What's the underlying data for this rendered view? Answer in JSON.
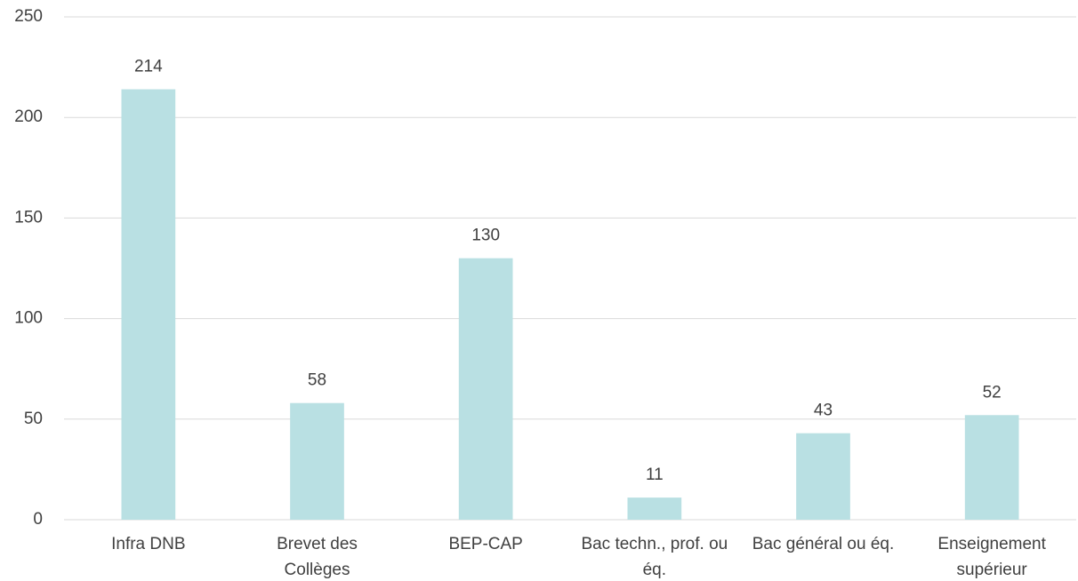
{
  "chart_data": {
    "type": "bar",
    "categories": [
      "Infra DNB",
      "Brevet des Collèges",
      "BEP-CAP",
      "Bac techn., prof. ou éq.",
      "Bac général ou éq.",
      "Enseignement supérieur"
    ],
    "values": [
      214,
      58,
      130,
      11,
      43,
      52
    ],
    "color": "#b9e0e3",
    "ylim": [
      0,
      250
    ],
    "yticks": [
      0,
      50,
      100,
      150,
      200,
      250
    ],
    "grid": true
  }
}
